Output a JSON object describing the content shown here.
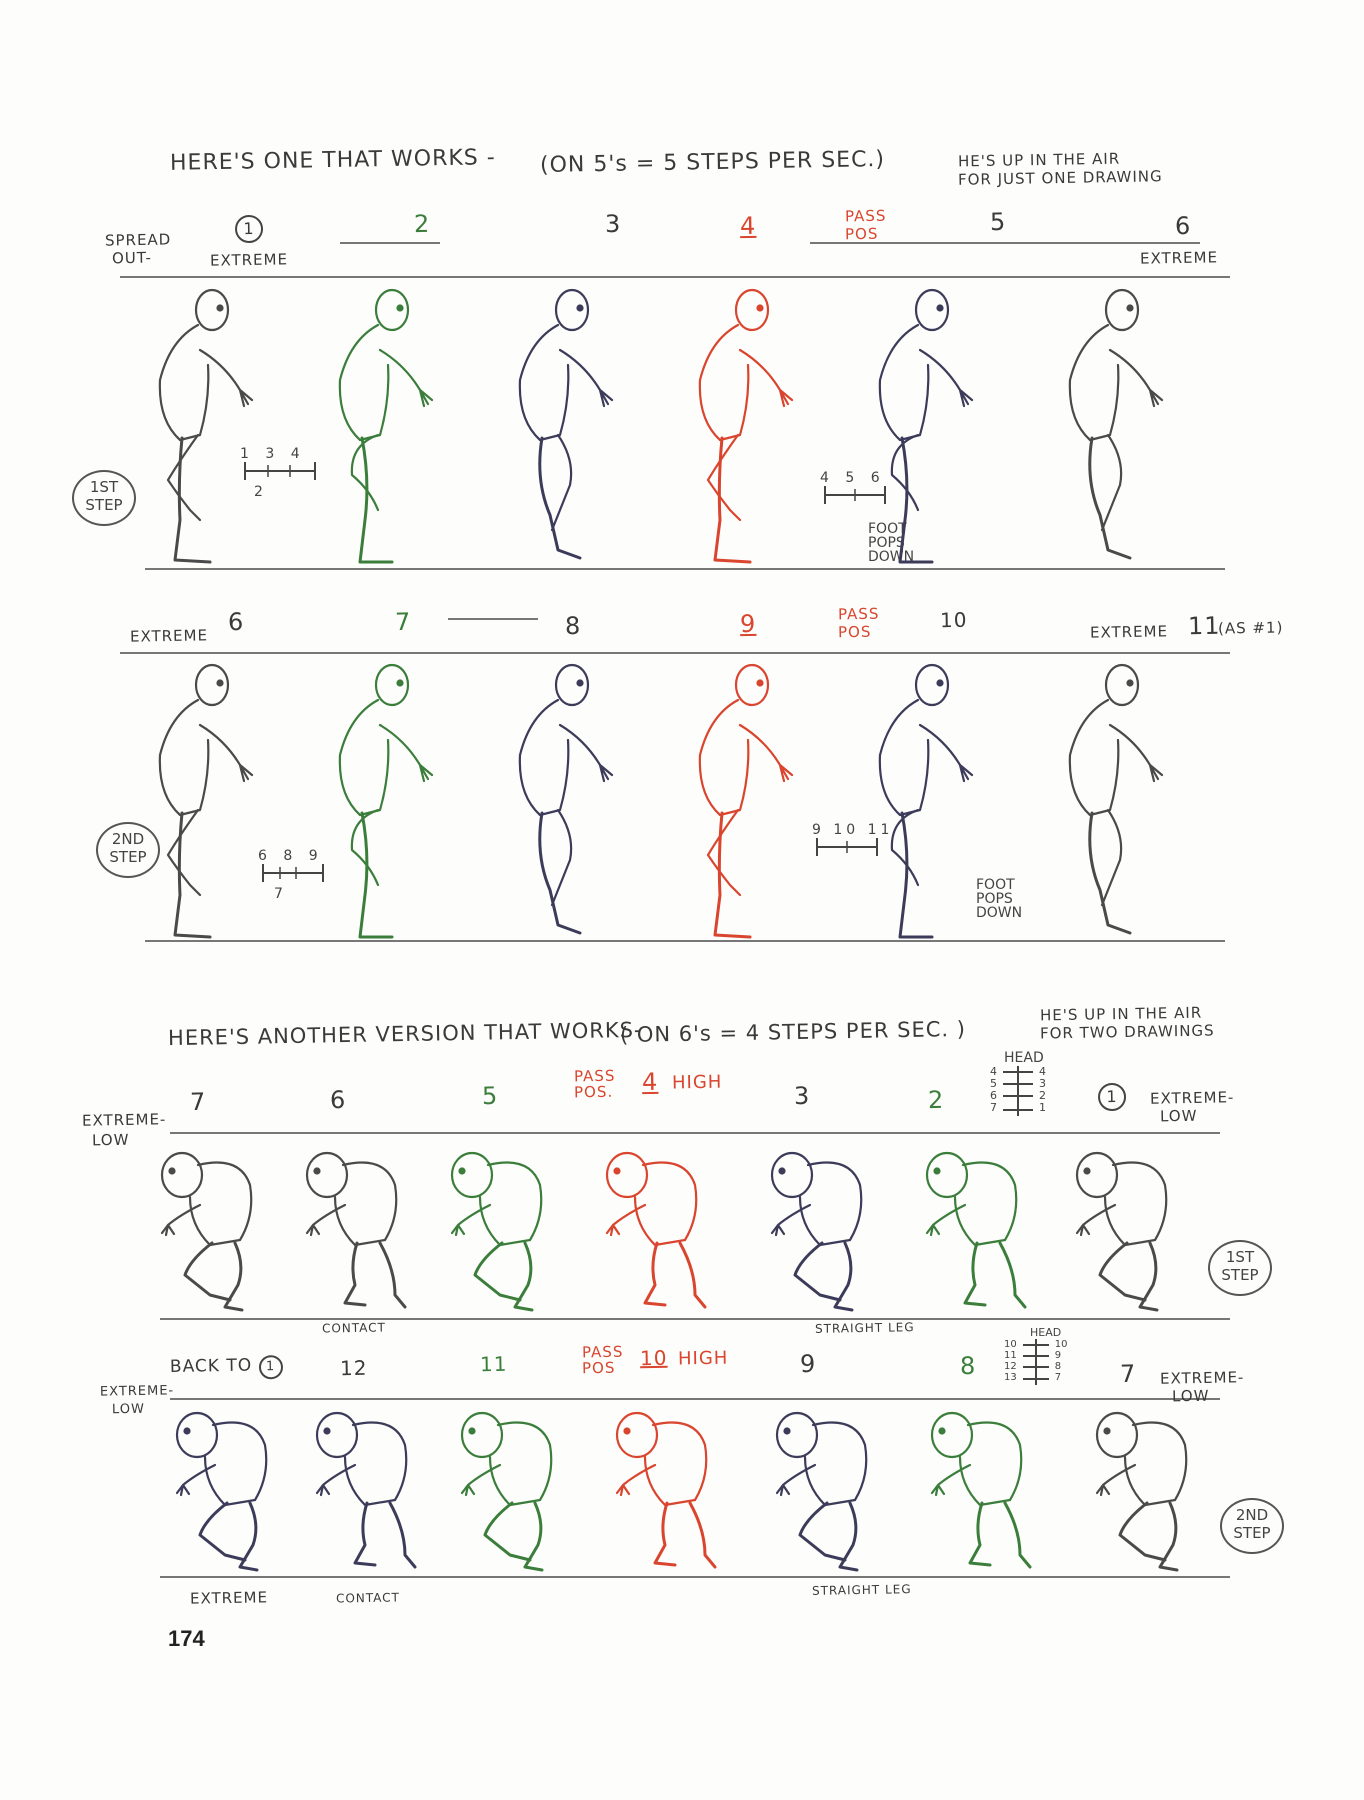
{
  "section1": {
    "title": "HERE'S ONE THAT WORKS -",
    "subtitle": "(ON 5's = 5 STEPS PER SEC.)",
    "note": [
      "HE'S UP IN THE AIR",
      "FOR JUST ONE DRAWING"
    ],
    "row1": {
      "labels": {
        "spread_out": [
          "SPREAD",
          "OUT-"
        ],
        "num1": "1",
        "extreme1": "EXTREME",
        "num2": "2",
        "num3": "3",
        "num4": "4",
        "pass_pos": [
          "PASS",
          "POS"
        ],
        "num5": "5",
        "num6": "6",
        "extreme6": "EXTREME"
      },
      "badge": [
        "1ST",
        "STEP"
      ],
      "ticks_a": {
        "top": "1  3  4",
        "bottom": "2"
      },
      "ticks_b": {
        "top": "4  5  6"
      },
      "foot_note": [
        "FOOT",
        "POPS",
        "DOWN"
      ],
      "figures": [
        {
          "frame": "1",
          "color": "#4a4a4a"
        },
        {
          "frame": "2",
          "color": "#3b7d3b"
        },
        {
          "frame": "3",
          "color": "#3c3c5a"
        },
        {
          "frame": "4",
          "color": "#d9452e"
        },
        {
          "frame": "5",
          "color": "#3c3c5a"
        },
        {
          "frame": "6",
          "color": "#4a4a4a"
        }
      ]
    },
    "row2": {
      "labels": {
        "extreme6": "EXTREME",
        "num6": "6",
        "num7": "7",
        "num8": "8",
        "num9": "9",
        "pass_pos": [
          "PASS",
          "POS"
        ],
        "num10": "10",
        "extreme11": "EXTREME",
        "num11": "11",
        "as1": "(AS #1)"
      },
      "badge": [
        "2ND",
        "STEP"
      ],
      "ticks_a": {
        "top": "6  8  9",
        "bottom": "7"
      },
      "ticks_b": {
        "top": "9  10  11"
      },
      "foot_note": [
        "FOOT",
        "POPS",
        "DOWN"
      ],
      "figures": [
        {
          "frame": "6",
          "color": "#4a4a4a"
        },
        {
          "frame": "7",
          "color": "#3b7d3b"
        },
        {
          "frame": "8",
          "color": "#3c3c5a"
        },
        {
          "frame": "9",
          "color": "#d9452e"
        },
        {
          "frame": "10",
          "color": "#3c3c5a"
        },
        {
          "frame": "11",
          "color": "#4a4a4a"
        }
      ]
    }
  },
  "section2": {
    "title": "HERE'S ANOTHER VERSION THAT WORKS-",
    "subtitle": "( ON 6's = 4 STEPS PER SEC. )",
    "note": [
      "HE'S UP IN THE AIR",
      "FOR TWO DRAWINGS"
    ],
    "row3": {
      "labels": {
        "extreme_low_left": [
          "EXTREME-",
          "LOW"
        ],
        "num7": "7",
        "num6": "6",
        "num5": "5",
        "pass_pos": [
          "PASS",
          "POS."
        ],
        "num4": "4",
        "high": "HIGH",
        "num3": "3",
        "num2": "2",
        "head": "HEAD",
        "head_left": [
          "4",
          "5",
          "6",
          "7"
        ],
        "head_right": [
          "4",
          "3",
          "2",
          "1"
        ],
        "num1": "1",
        "extreme_low_right": [
          "EXTREME-",
          "LOW"
        ],
        "contact": "CONTACT",
        "straight_leg": "STRAIGHT LEG"
      },
      "badge": [
        "1ST",
        "STEP"
      ],
      "figures": [
        {
          "frame": "7",
          "color": "#4a4a4a"
        },
        {
          "frame": "6",
          "color": "#4a4a4a"
        },
        {
          "frame": "5",
          "color": "#3b7d3b"
        },
        {
          "frame": "4",
          "color": "#d9452e"
        },
        {
          "frame": "3",
          "color": "#3c3c5a"
        },
        {
          "frame": "2",
          "color": "#3b7d3b"
        },
        {
          "frame": "1",
          "color": "#4a4a4a"
        }
      ]
    },
    "row4": {
      "labels": {
        "back_to": "BACK TO",
        "back_to_num": "1",
        "extreme_low_left": [
          "EXTREME-",
          "LOW"
        ],
        "num12": "12",
        "num11": "11",
        "pass_pos": [
          "PASS",
          "POS"
        ],
        "num10": "10",
        "high": "HIGH",
        "num9": "9",
        "num8": "8",
        "head": "HEAD",
        "head_left": [
          "10",
          "11",
          "12",
          "13"
        ],
        "head_right": [
          "10",
          "9",
          "8",
          "7"
        ],
        "num7": "7",
        "extreme_low_right": [
          "EXTREME-",
          "LOW"
        ],
        "extreme": "EXTREME",
        "contact": "CONTACT",
        "straight_leg": "STRAIGHT LEG"
      },
      "badge": [
        "2ND",
        "STEP"
      ],
      "figures": [
        {
          "frame": "1",
          "color": "#3c3c5a"
        },
        {
          "frame": "12",
          "color": "#3c3c5a"
        },
        {
          "frame": "11",
          "color": "#3b7d3b"
        },
        {
          "frame": "10",
          "color": "#d9452e"
        },
        {
          "frame": "9",
          "color": "#3c3c5a"
        },
        {
          "frame": "8",
          "color": "#3b7d3b"
        },
        {
          "frame": "7",
          "color": "#4a4a4a"
        }
      ]
    }
  },
  "page_number": "174",
  "colors": {
    "ink": "#3a3a3a",
    "red": "#d9452e",
    "green": "#3b7d3b",
    "navy": "#3c3c5a"
  }
}
